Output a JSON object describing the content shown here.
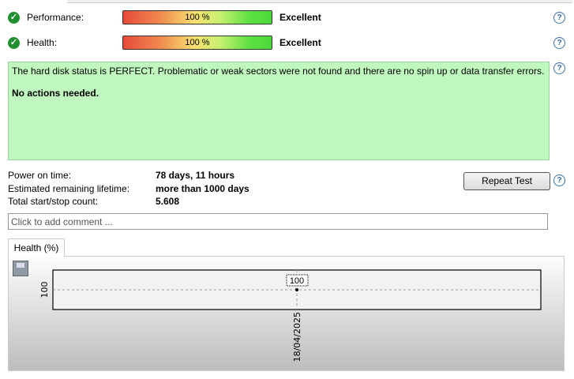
{
  "status": [
    {
      "label": "Performance:",
      "value_percent": 100,
      "value_text": "100 %",
      "rating": "Excellent"
    },
    {
      "label": "Health:",
      "value_percent": 100,
      "value_text": "100 %",
      "rating": "Excellent"
    }
  ],
  "message": {
    "text": "The hard disk status is PERFECT. Problematic or weak sectors were not found and there are no spin up or data transfer errors.",
    "action": "No actions needed.",
    "bg_color": "#bff7bf"
  },
  "info": [
    {
      "label": "Power on time:",
      "value": "78 days, 11 hours"
    },
    {
      "label": "Estimated remaining lifetime:",
      "value": "more than 1000 days"
    },
    {
      "label": "Total start/stop count:",
      "value": "5.608"
    }
  ],
  "repeat_test_label": "Repeat Test",
  "comment_placeholder": "Click to add comment ...",
  "chart_tab": "Health (%)",
  "chart_data": {
    "type": "line",
    "x": [
      "18/04/2025"
    ],
    "series": [
      {
        "values": [
          100
        ]
      }
    ],
    "y_ticks": [
      "100"
    ],
    "x_ticks": [
      "18/04/2025"
    ],
    "data_labels": [
      "100"
    ]
  }
}
